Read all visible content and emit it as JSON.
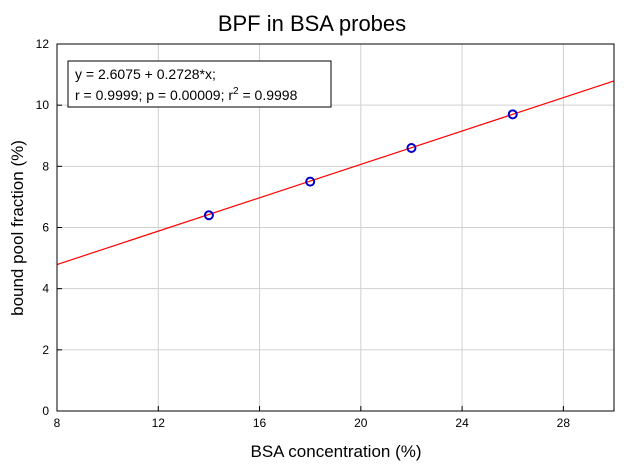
{
  "chart_data": {
    "type": "scatter",
    "title": "BPF in BSA probes",
    "xlabel": "BSA concentration (%)",
    "ylabel": "bound pool fraction (%)",
    "xlim": [
      8,
      30
    ],
    "ylim": [
      0,
      12
    ],
    "xticks": [
      8,
      12,
      16,
      20,
      24,
      28
    ],
    "yticks": [
      0,
      2,
      4,
      6,
      8,
      10,
      12
    ],
    "grid": true,
    "points": [
      {
        "x": 14,
        "y": 6.4
      },
      {
        "x": 18,
        "y": 7.5
      },
      {
        "x": 22,
        "y": 8.6
      },
      {
        "x": 26,
        "y": 9.7
      }
    ],
    "fit": {
      "intercept": 2.6075,
      "slope": 0.2728
    },
    "colors": {
      "points": "#0000cc",
      "fit_line": "#ff0000",
      "grid": "#d0d0d0"
    },
    "annotation": {
      "line1": "y = 2.6075 + 0.2728*x;",
      "line2_prefix": "r = 0.9999; p = 0.00009; r",
      "line2_sup": "2",
      "line2_suffix": " = 0.9998"
    }
  }
}
